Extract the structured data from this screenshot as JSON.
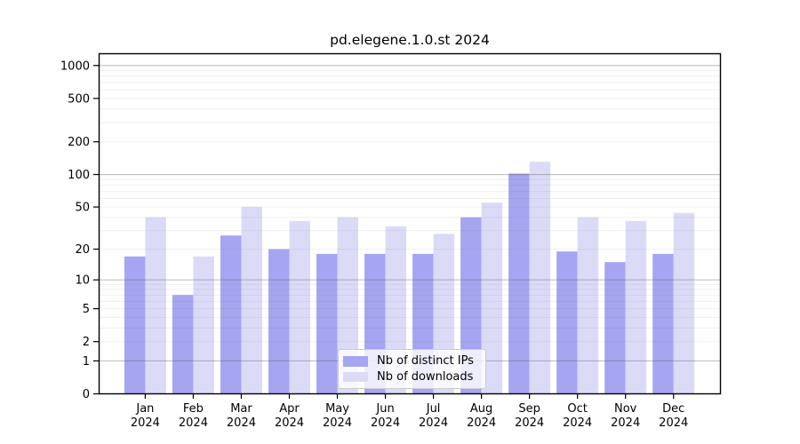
{
  "title": "pd.elegene.1.0.st 2024",
  "chart_data": {
    "type": "bar",
    "title": "pd.elegene.1.0.st 2024",
    "scale": "log1p",
    "grid": "on",
    "legend_position": "bottom-center",
    "categories": [
      "Jan",
      "Feb",
      "Mar",
      "Apr",
      "May",
      "Jun",
      "Jul",
      "Aug",
      "Sep",
      "Oct",
      "Nov",
      "Dec"
    ],
    "year": "2024",
    "series": [
      {
        "name": "Nb of distinct IPs",
        "color": "#a5a5f1",
        "values": [
          17,
          7,
          27,
          20,
          18,
          18,
          18,
          40,
          102,
          19,
          15,
          18
        ]
      },
      {
        "name": "Nb of downloads",
        "color": "#dbdbf8",
        "values": [
          40,
          17,
          50,
          37,
          40,
          33,
          28,
          55,
          131,
          40,
          37,
          44
        ]
      }
    ],
    "xlabel": "",
    "ylabel": "",
    "y_ticks": [
      0,
      1,
      2,
      5,
      10,
      20,
      50,
      100,
      200,
      500,
      1000
    ],
    "ylim": [
      0,
      1282
    ],
    "colors": {
      "major_grid": "#c6c6c6",
      "minor_grid": "#efefef",
      "spine": "#000000",
      "text": "#000000",
      "background": "#ffffff"
    }
  }
}
